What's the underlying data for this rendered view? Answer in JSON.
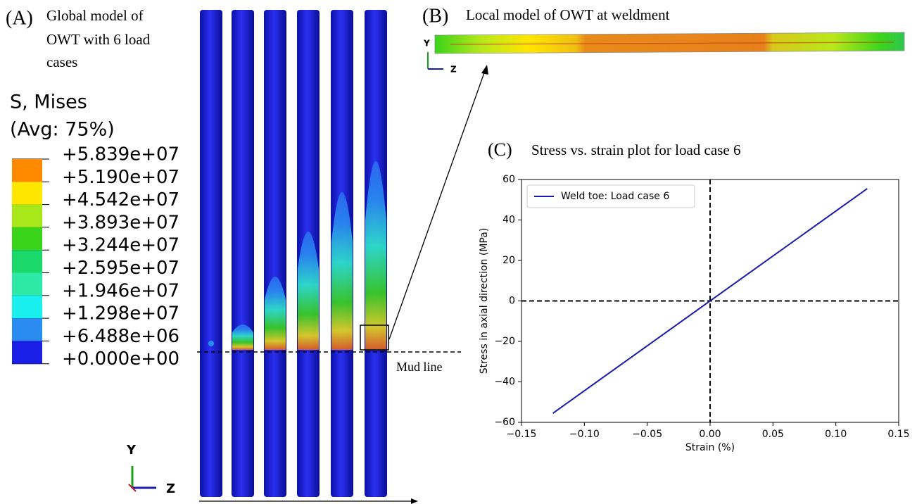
{
  "panel_a": {
    "label": "(A)",
    "caption": [
      "Global model of",
      "OWT with 6 load",
      "cases"
    ],
    "legend_title": [
      "S, Mises",
      "(Avg: 75%)"
    ],
    "legend_labels": [
      "+5.839e+07",
      "+5.190e+07",
      "+4.542e+07",
      "+3.893e+07",
      "+3.244e+07",
      "+2.595e+07",
      "+1.946e+07",
      "+1.298e+07",
      "+6.488e+06",
      "+0.000e+00"
    ],
    "legend_colors": [
      "#e8141a",
      "#ff8a00",
      "#ffe600",
      "#a8e81a",
      "#3ad41a",
      "#1bd86a",
      "#2ee8a8",
      "#19f0ee",
      "#2a8cf0",
      "#1a20e8"
    ],
    "triad": [
      "Y",
      "Z"
    ],
    "mud_line": "Mud line"
  },
  "panel_b": {
    "label": "(B)",
    "caption": "Local model of OWT at weldment",
    "triad": [
      "Y",
      "Z"
    ]
  },
  "panel_c": {
    "label": "(C)"
  },
  "chart_data": {
    "type": "line",
    "title": "Stress vs. strain plot for load case 6",
    "x": [
      -0.125,
      0.125
    ],
    "series": [
      {
        "name": "Weld toe: Load case 6",
        "color": "#1a1ab0",
        "values": [
          -55.5,
          55.5
        ]
      }
    ],
    "xlabel": "Strain (%)",
    "ylabel": "Stress in axial direction (MPa)",
    "xlim": [
      -0.15,
      0.15
    ],
    "xticks": [
      {
        "value": -0.15,
        "label": "−0.15"
      },
      {
        "value": -0.1,
        "label": "−0.10"
      },
      {
        "value": -0.05,
        "label": "−0.05"
      },
      {
        "value": 0,
        "label": "0.00"
      },
      {
        "value": 0.05,
        "label": "0.05"
      },
      {
        "value": 0.1,
        "label": "0.10"
      },
      {
        "value": 0.15,
        "label": "0.15"
      }
    ],
    "ylim": [
      -60,
      60
    ],
    "yticks": [
      {
        "value": -60,
        "label": "−60"
      },
      {
        "value": -40,
        "label": "−40"
      },
      {
        "value": -20,
        "label": "−20"
      },
      0,
      20,
      40,
      60
    ],
    "hlines": [
      0
    ],
    "vlines": [
      0
    ],
    "legend": "upper left"
  }
}
